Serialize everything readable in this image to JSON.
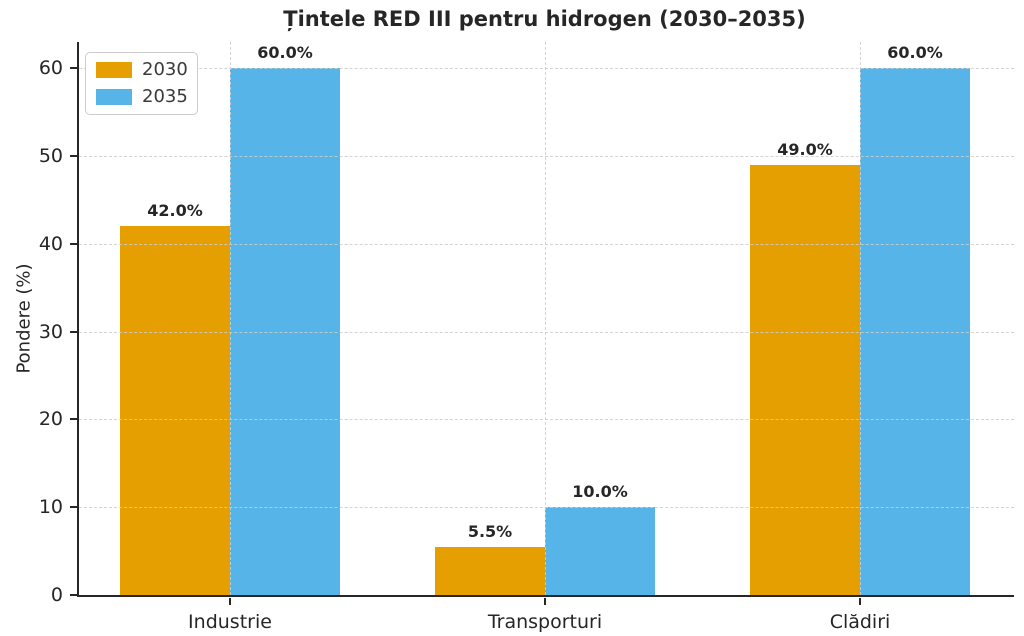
{
  "chart_data": {
    "type": "bar",
    "title": "Țintele RED III pentru hidrogen (2030–2035)",
    "ylabel": "Pondere (%)",
    "xlabel": "",
    "categories": [
      "Industrie",
      "Transporturi",
      "Clădiri"
    ],
    "series": [
      {
        "name": "2030",
        "color": "#E69F00",
        "values": [
          42.0,
          5.5,
          49.0
        ],
        "value_labels": [
          "42.0%",
          "5.5%",
          "49.0%"
        ]
      },
      {
        "name": "2035",
        "color": "#56B4E9",
        "values": [
          60.0,
          10.0,
          60.0
        ],
        "value_labels": [
          "60.0%",
          "10.0%",
          "60.0%"
        ]
      }
    ],
    "yticks": [
      0,
      10,
      20,
      30,
      40,
      50,
      60
    ],
    "ylim": [
      0,
      63
    ],
    "grid": {
      "horizontal": true,
      "vertical": true,
      "style": "dashed",
      "color": "#cccccc",
      "above_bars": true
    },
    "legend": {
      "position": "upper-left"
    },
    "axis_color": "#262626",
    "text_color": "#262626",
    "background": "#ffffff"
  }
}
